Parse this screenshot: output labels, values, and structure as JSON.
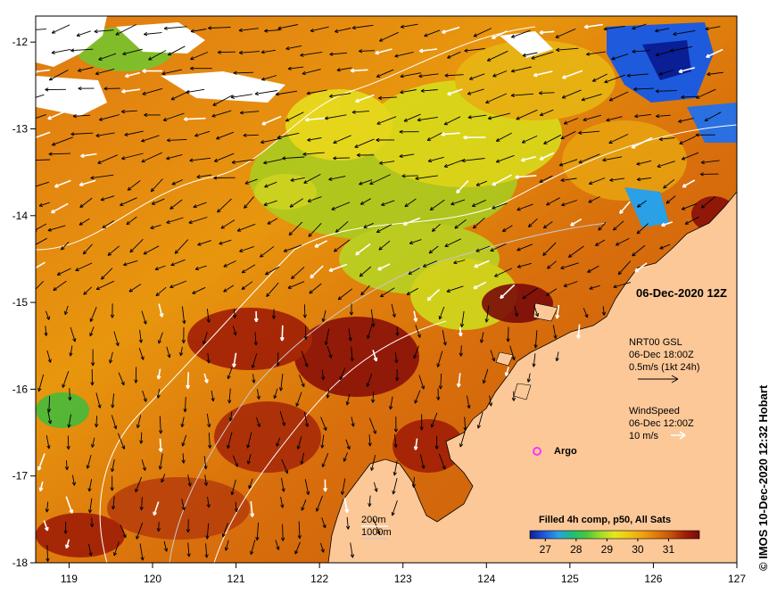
{
  "map": {
    "lon_ticks": [
      "119",
      "120",
      "121",
      "122",
      "123",
      "124",
      "125",
      "126",
      "127"
    ],
    "lat_ticks": [
      "-12",
      "-13",
      "-14",
      "-15",
      "-16",
      "-17",
      "-18"
    ],
    "lon_range": [
      118.6,
      127
    ],
    "lat_range": [
      -18,
      -11.7
    ],
    "land_color": "#fcc898",
    "cloud_color": "#ffffff",
    "date_label": "06-Dec-2020 12Z",
    "current_legend": {
      "line1": "NRT00 GSL",
      "line2": "06-Dec 18:00Z",
      "line3": "0.5m/s (1kt 24h)"
    },
    "wind_legend": {
      "line1": "WindSpeed",
      "line2": "06-Dec 12:00Z",
      "line3": "10 m/s"
    },
    "argo_label": "Argo",
    "argo_color": "#ff33ff",
    "depth_legend": {
      "contour1": "200m",
      "contour2": "1000m"
    },
    "colorbar": {
      "title": "Filled 4h comp, p50, All Sats",
      "ticks": [
        "27",
        "28",
        "29",
        "30",
        "31"
      ],
      "colors": [
        "#0a1e96",
        "#1e5adc",
        "#2aa0e6",
        "#1ebe7a",
        "#46c83c",
        "#a0dc28",
        "#e6e61e",
        "#f0c814",
        "#f0a010",
        "#e0780a",
        "#c8500a",
        "#a01e06",
        "#7a0a0a"
      ]
    },
    "credit": "© IMOS 10-Dec-2020 12:32 Hobart"
  }
}
